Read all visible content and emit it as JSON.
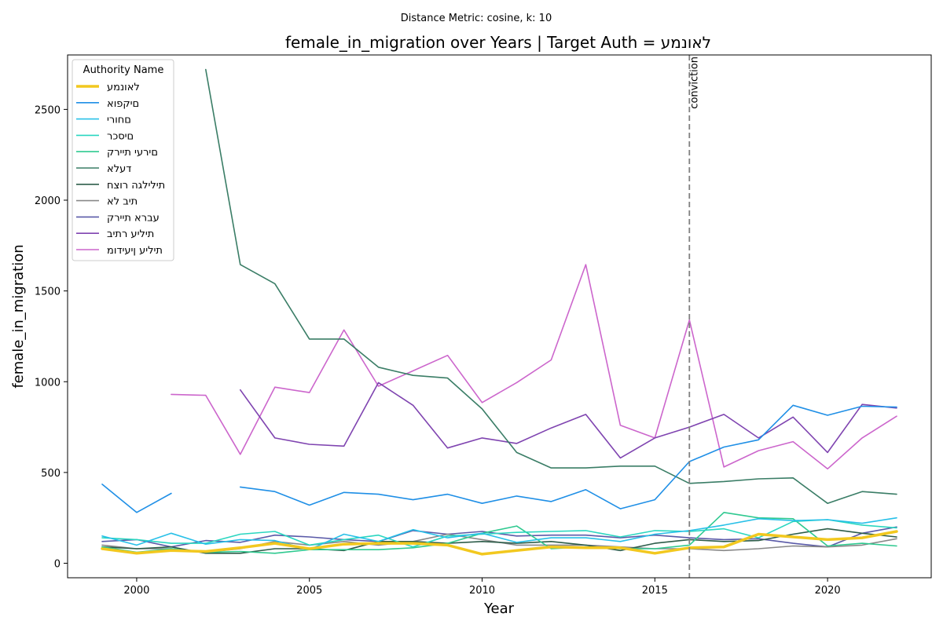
{
  "chart_data": {
    "type": "line",
    "suptitle": "Distance Metric: cosine, k: 10",
    "title": "female_in_migration over Years | Target Auth = לאונמע",
    "xlabel": "Year",
    "ylabel": "female_in_migration",
    "xlim": [
      1998,
      2023
    ],
    "ylim": [
      -80,
      2800
    ],
    "x_ticks": [
      2000,
      2005,
      2010,
      2015,
      2020
    ],
    "y_ticks": [
      0,
      500,
      1000,
      1500,
      2000,
      2500
    ],
    "grid": false,
    "legend": {
      "title": "Authority Name",
      "placement": "top-left"
    },
    "vline": {
      "x": 2016,
      "label": "conviction",
      "color": "#808080"
    },
    "x": [
      1999,
      2000,
      2001,
      2002,
      2003,
      2004,
      2005,
      2006,
      2007,
      2008,
      2009,
      2010,
      2011,
      2012,
      2013,
      2014,
      2015,
      2016,
      2017,
      2018,
      2019,
      2020,
      2021,
      2022
    ],
    "series": [
      {
        "name": "לאונמע",
        "color": "#f2c81f",
        "width": 3.5,
        "values": [
          80,
          55,
          70,
          65,
          85,
          110,
          80,
          105,
          110,
          110,
          100,
          50,
          70,
          90,
          85,
          85,
          55,
          85,
          90,
          160,
          145,
          130,
          140,
          175
        ]
      },
      {
        "name": "םיקפוא",
        "color": "#1f8fe6",
        "width": 1.6,
        "values": [
          435,
          280,
          385,
          null,
          420,
          395,
          320,
          390,
          380,
          350,
          380,
          330,
          370,
          340,
          405,
          300,
          350,
          560,
          640,
          680,
          870,
          815,
          865,
          860
        ]
      },
      {
        "name": "םחורי",
        "color": "#28c0e8",
        "width": 1.6,
        "values": [
          150,
          100,
          165,
          105,
          130,
          125,
          75,
          160,
          120,
          185,
          140,
          165,
          115,
          140,
          140,
          120,
          160,
          180,
          210,
          245,
          235,
          240,
          220,
          250
        ]
      },
      {
        "name": "םיסכר",
        "color": "#2ad6c0",
        "width": 1.6,
        "values": [
          140,
          130,
          110,
          110,
          160,
          175,
          100,
          130,
          155,
          90,
          150,
          160,
          170,
          175,
          180,
          145,
          180,
          175,
          190,
          140,
          230,
          240,
          210,
          195
        ]
      },
      {
        "name": "םירעי תיירק",
        "color": "#2fc990",
        "width": 1.6,
        "values": [
          90,
          60,
          80,
          60,
          65,
          55,
          75,
          75,
          75,
          85,
          110,
          165,
          205,
          80,
          90,
          80,
          80,
          100,
          280,
          250,
          245,
          95,
          110,
          95
        ]
      },
      {
        "name": "דעלא",
        "color": "#3a7d66",
        "width": 1.6,
        "values": [
          null,
          null,
          null,
          2720,
          1645,
          1540,
          1235,
          1235,
          1080,
          1035,
          1020,
          850,
          610,
          525,
          525,
          535,
          535,
          440,
          450,
          465,
          470,
          330,
          395,
          380
        ]
      },
      {
        "name": "תילילגה רוצח",
        "color": "#2e5d4a",
        "width": 1.6,
        "values": [
          90,
          80,
          90,
          55,
          55,
          80,
          80,
          70,
          120,
          120,
          110,
          120,
          110,
          120,
          100,
          70,
          110,
          130,
          120,
          125,
          160,
          190,
          165,
          145
        ]
      },
      {
        "name": "תיב לא",
        "color": "#888888",
        "width": 1.6,
        "values": [
          100,
          80,
          80,
          60,
          80,
          120,
          100,
          120,
          100,
          120,
          160,
          130,
          100,
          100,
          100,
          90,
          80,
          80,
          70,
          80,
          95,
          90,
          100,
          135
        ]
      },
      {
        "name": "עברא תיירק",
        "color": "#5a5aa8",
        "width": 1.6,
        "values": [
          120,
          130,
          90,
          125,
          115,
          155,
          145,
          130,
          120,
          180,
          160,
          175,
          150,
          155,
          155,
          140,
          155,
          140,
          130,
          135,
          110,
          90,
          165,
          200
        ]
      },
      {
        "name": "תיליע רתיב",
        "color": "#7f44b0",
        "width": 1.6,
        "values": [
          null,
          null,
          null,
          null,
          955,
          690,
          655,
          645,
          995,
          870,
          635,
          690,
          660,
          745,
          820,
          580,
          690,
          750,
          820,
          690,
          805,
          610,
          875,
          855
        ]
      },
      {
        "name": "תיליע ןיעידומ",
        "color": "#cc66cc",
        "width": 1.6,
        "values": [
          null,
          null,
          930,
          925,
          600,
          970,
          940,
          1285,
          975,
          1060,
          1145,
          885,
          995,
          1120,
          1645,
          760,
          690,
          1340,
          530,
          620,
          670,
          520,
          690,
          810
        ]
      }
    ]
  }
}
